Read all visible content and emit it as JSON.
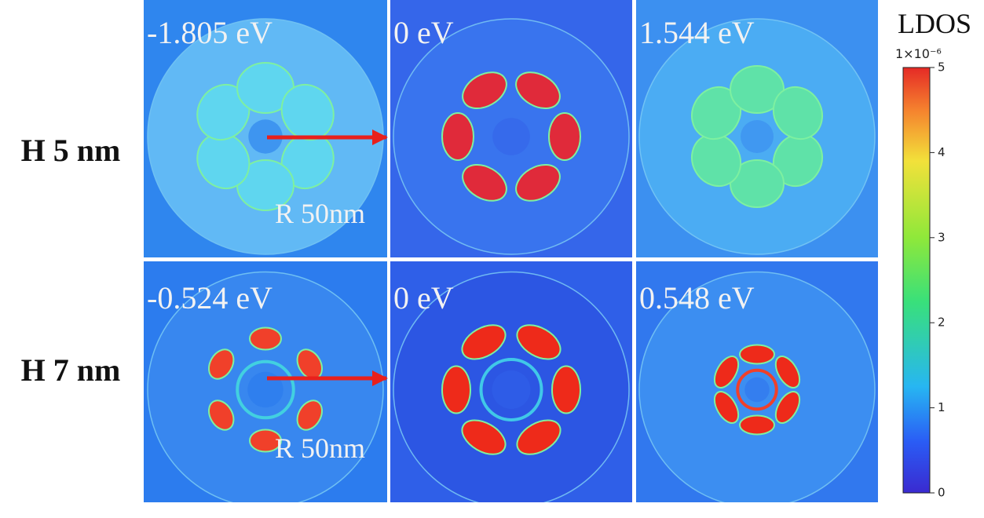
{
  "row_labels": [
    "H 5 nm",
    "H 7 nm"
  ],
  "panels": [
    [
      "-1.805 eV",
      "0 eV",
      "1.544 eV"
    ],
    [
      "-0.524 eV",
      "0 eV",
      "0.548 eV"
    ]
  ],
  "annotations": [
    "R 50nm",
    "R 50nm"
  ],
  "colorbar": {
    "title": "LDOS",
    "scale_label": "1×10⁻⁶",
    "lim": [
      0,
      5
    ],
    "ticks": [
      0,
      1,
      2,
      3,
      4,
      5
    ]
  }
}
